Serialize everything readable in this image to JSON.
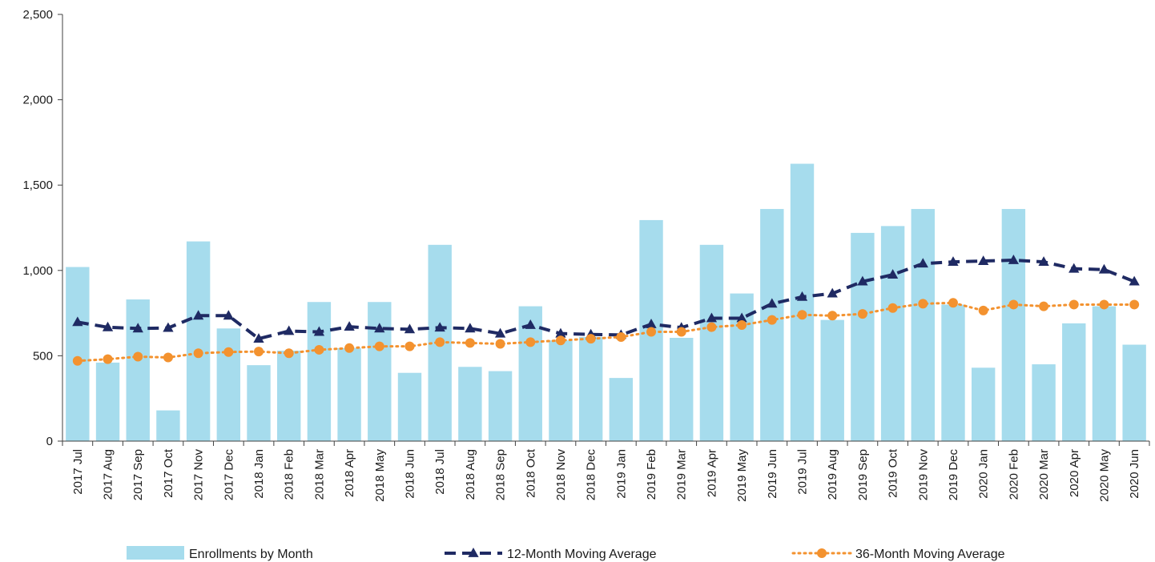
{
  "chart_data": {
    "type": "bar",
    "title": "",
    "xlabel": "",
    "ylabel": "",
    "ylim": [
      0,
      2500
    ],
    "yticks": [
      0,
      500,
      1000,
      1500,
      2000,
      2500
    ],
    "ytick_labels": [
      "0",
      "500",
      "1,000",
      "1,500",
      "2,000",
      "2,500"
    ],
    "grid": false,
    "legend_position": "bottom",
    "categories": [
      "2017 Jul",
      "2017 Aug",
      "2017 Sep",
      "2017 Oct",
      "2017 Nov",
      "2017 Dec",
      "2018 Jan",
      "2018 Feb",
      "2018 Mar",
      "2018 Apr",
      "2018 May",
      "2018 Jun",
      "2018 Jul",
      "2018 Aug",
      "2018 Sep",
      "2018 Oct",
      "2018 Nov",
      "2018 Dec",
      "2019 Jan",
      "2019 Feb",
      "2019 Mar",
      "2019 Apr",
      "2019 May",
      "2019 Jun",
      "2019 Jul",
      "2019 Aug",
      "2019 Sep",
      "2019 Oct",
      "2019 Nov",
      "2019 Dec",
      "2020 Jan",
      "2020 Feb",
      "2020 Mar",
      "2020 Apr",
      "2020 May",
      "2020 Jun"
    ],
    "series": [
      {
        "name": "Enrollments by Month",
        "kind": "bar",
        "color": "#a6dced",
        "values": [
          1020,
          460,
          830,
          180,
          1170,
          660,
          445,
          530,
          815,
          545,
          815,
          400,
          1150,
          435,
          410,
          790,
          590,
          610,
          370,
          1295,
          605,
          1150,
          865,
          1360,
          1625,
          710,
          1220,
          1260,
          1360,
          800,
          430,
          1360,
          450,
          690,
          790,
          565
        ]
      },
      {
        "name": "12-Month Moving Average",
        "kind": "line",
        "style": "dashed",
        "marker": "triangle",
        "color": "#1f2a63",
        "values": [
          697,
          667,
          660,
          663,
          735,
          735,
          600,
          645,
          640,
          670,
          660,
          655,
          665,
          660,
          630,
          680,
          630,
          625,
          622,
          685,
          665,
          720,
          720,
          805,
          845,
          865,
          935,
          975,
          1040,
          1050,
          1055,
          1060,
          1050,
          1010,
          1005,
          935
        ]
      },
      {
        "name": "36-Month Moving Average",
        "kind": "line",
        "style": "dotted",
        "marker": "circle",
        "color": "#f3922f",
        "values": [
          470,
          480,
          495,
          490,
          515,
          522,
          525,
          515,
          535,
          545,
          555,
          555,
          580,
          575,
          570,
          580,
          590,
          600,
          610,
          640,
          640,
          668,
          680,
          710,
          740,
          735,
          745,
          780,
          805,
          810,
          765,
          800,
          790,
          800,
          800,
          800
        ]
      }
    ]
  }
}
